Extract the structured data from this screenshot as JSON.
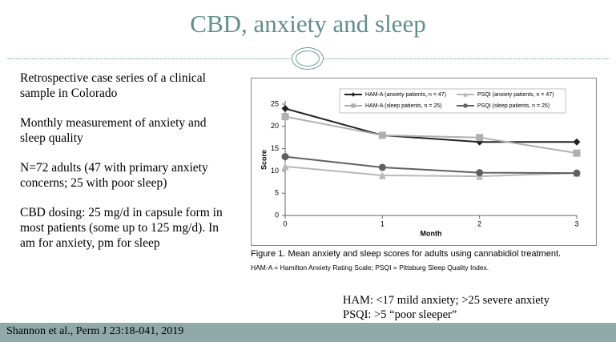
{
  "slide": {
    "title": "CBD, anxiety and sleep",
    "paragraphs": [
      "Retrospective case series of a clinical sample in Colorado",
      "Monthly measurement of anxiety and sleep quality",
      "N=72 adults (47 with primary anxiety concerns; 25 with poor sleep)",
      "CBD dosing: 25 mg/d in capsule form in most patients (some up to 125 mg/d).  In am for anxiety, pm for sleep"
    ],
    "notes": [
      "HAM: <17 mild anxiety; >25 severe anxiety",
      "PSQI: >5 “poor sleeper”"
    ],
    "citation": "Shannon et al., Perm J 23:18-041, 2019",
    "caption": "Figure 1. Mean anxiety and sleep scores for adults using cannabidiol treatment.",
    "caption_note": "HAM-A = Hamilton Anxiety Rating Scale; PSQI = Pittsburg Sleep Quality Index."
  },
  "chart_data": {
    "type": "line",
    "x_label": "Month",
    "y_label": "Score",
    "x": [
      0,
      1,
      2,
      3
    ],
    "xlim": [
      0,
      3
    ],
    "xticks": [
      0,
      1,
      2,
      3
    ],
    "ylim": [
      0,
      25
    ],
    "yticks": [
      0,
      5,
      10,
      15,
      20,
      25
    ],
    "grid": false,
    "series": [
      {
        "name": "HAM-A (anxiety patients, n = 47)",
        "color": "#222222",
        "marker": "diamond",
        "values": [
          24,
          18,
          16.5,
          16.5
        ]
      },
      {
        "name": "PSQI (anxiety patients, n = 47)",
        "color": "#b8b8b8",
        "marker": "triangle",
        "values": [
          11,
          9,
          8.8,
          9.5
        ]
      },
      {
        "name": "HAM-A (sleep patients, n = 25)",
        "color": "#b0b0b0",
        "marker": "square",
        "values": [
          22.2,
          18,
          17.5,
          14
        ]
      },
      {
        "name": "PSQI (sleep patients, n = 25)",
        "color": "#606060",
        "marker": "circle",
        "values": [
          13.2,
          10.8,
          9.6,
          9.5
        ]
      }
    ]
  }
}
